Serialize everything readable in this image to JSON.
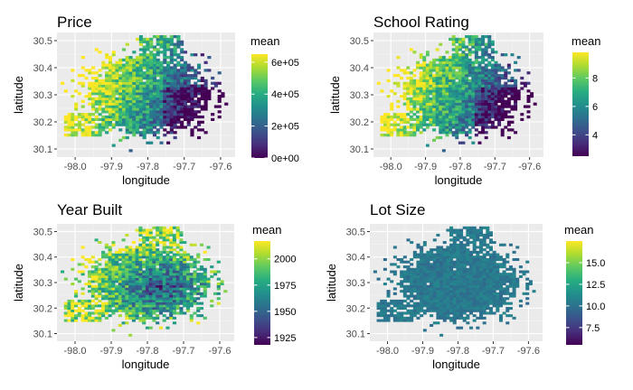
{
  "chart_data": [
    {
      "type": "heatmap",
      "title": "Price",
      "xlabel": "longitude",
      "ylabel": "latitude",
      "xlim": [
        -98.05,
        -97.56
      ],
      "ylim": [
        30.07,
        30.53
      ],
      "xticks": [
        "-98.0",
        "-97.9",
        "-97.8",
        "-97.7",
        "-97.6"
      ],
      "yticks": [
        "30.1",
        "30.2",
        "30.3",
        "30.4",
        "30.5"
      ],
      "legend": {
        "title": "mean",
        "min": 0,
        "max": 650000,
        "ticks": [
          0,
          200000,
          400000,
          600000
        ],
        "tick_labels": [
          "0e+00",
          "2e+05",
          "4e+05",
          "6e+05"
        ]
      },
      "pattern": "high-west"
    },
    {
      "type": "heatmap",
      "title": "School Rating",
      "xlabel": "longitude",
      "ylabel": "latitude",
      "xlim": [
        -98.05,
        -97.56
      ],
      "ylim": [
        30.07,
        30.53
      ],
      "xticks": [
        "-98.0",
        "-97.9",
        "-97.8",
        "-97.7",
        "-97.6"
      ],
      "yticks": [
        "30.1",
        "30.2",
        "30.3",
        "30.4",
        "30.5"
      ],
      "legend": {
        "title": "mean",
        "min": 2.5,
        "max": 9.8,
        "ticks": [
          4,
          6,
          8
        ],
        "tick_labels": [
          "4",
          "6",
          "8"
        ]
      },
      "pattern": "high-west"
    },
    {
      "type": "heatmap",
      "title": "Year Built",
      "xlabel": "longitude",
      "ylabel": "latitude",
      "xlim": [
        -98.05,
        -97.56
      ],
      "ylim": [
        30.07,
        30.53
      ],
      "xticks": [
        "-98.0",
        "-97.9",
        "-97.8",
        "-97.7",
        "-97.6"
      ],
      "yticks": [
        "30.1",
        "30.2",
        "30.3",
        "30.4",
        "30.5"
      ],
      "legend": {
        "title": "mean",
        "min": 1918,
        "max": 2017,
        "ticks": [
          1925,
          1950,
          1975,
          2000
        ],
        "tick_labels": [
          "1925",
          "1950",
          "1975",
          "2000"
        ]
      },
      "pattern": "low-center"
    },
    {
      "type": "heatmap",
      "title": "Lot Size",
      "xlabel": "longitude",
      "ylabel": "latitude",
      "xlim": [
        -98.05,
        -97.56
      ],
      "ylim": [
        30.07,
        30.53
      ],
      "xticks": [
        "-98.0",
        "-97.9",
        "-97.8",
        "-97.7",
        "-97.6"
      ],
      "yticks": [
        "30.1",
        "30.2",
        "30.3",
        "30.4",
        "30.5"
      ],
      "legend": {
        "title": "mean",
        "min": 5.5,
        "max": 17.5,
        "ticks": [
          7.5,
          10,
          12.5,
          15
        ],
        "tick_labels": [
          "7.5",
          "10.0",
          "12.5",
          "15.0"
        ]
      },
      "pattern": "uniform"
    }
  ]
}
